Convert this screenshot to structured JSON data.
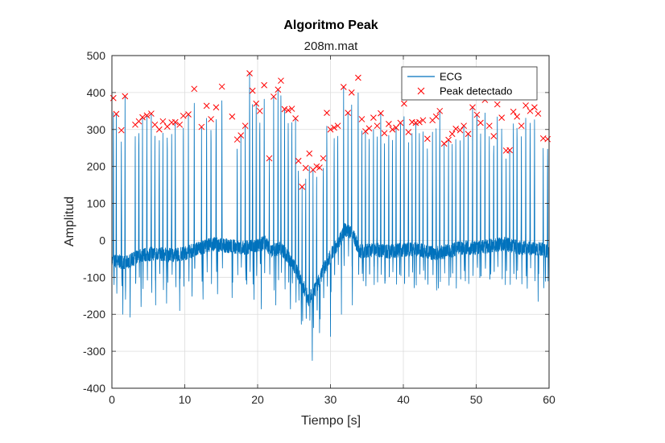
{
  "chart_data": {
    "type": "line",
    "title": "Algoritmo Peak",
    "subtitle": "208m.mat",
    "xlabel": "Tiempo [s]",
    "ylabel": "Amplitud",
    "xlim": [
      0,
      60
    ],
    "ylim": [
      -400,
      500
    ],
    "xticks": [
      0,
      10,
      20,
      30,
      40,
      50,
      60
    ],
    "yticks": [
      -400,
      -300,
      -200,
      -100,
      0,
      100,
      200,
      300,
      400,
      500
    ],
    "grid": true,
    "legend_position": "top-right",
    "series": [
      {
        "name": "ECG",
        "color": "#0072BD",
        "style": "line",
        "baseline": [
          [
            0,
            -55
          ],
          [
            2,
            -60
          ],
          [
            4,
            -40
          ],
          [
            6,
            -35
          ],
          [
            8,
            -40
          ],
          [
            10,
            -35
          ],
          [
            12,
            -20
          ],
          [
            14,
            -10
          ],
          [
            16,
            -15
          ],
          [
            18,
            -20
          ],
          [
            20,
            -15
          ],
          [
            21,
            -5
          ],
          [
            22,
            -30
          ],
          [
            23,
            -20
          ],
          [
            24,
            -40
          ],
          [
            25,
            -70
          ],
          [
            26,
            -110
          ],
          [
            27,
            -160
          ],
          [
            28,
            -130
          ],
          [
            29,
            -80
          ],
          [
            30,
            -40
          ],
          [
            31,
            -10
          ],
          [
            32,
            30
          ],
          [
            33,
            20
          ],
          [
            34,
            -30
          ],
          [
            36,
            -25
          ],
          [
            38,
            -30
          ],
          [
            40,
            -25
          ],
          [
            42,
            -25
          ],
          [
            44,
            -35
          ],
          [
            46,
            -30
          ],
          [
            48,
            -20
          ],
          [
            50,
            -20
          ],
          [
            52,
            -15
          ],
          [
            54,
            -10
          ],
          [
            56,
            -20
          ],
          [
            58,
            -20
          ],
          [
            60,
            -30
          ]
        ],
        "troughs": [
          [
            0.3,
            -120
          ],
          [
            1.5,
            -200
          ],
          [
            2.5,
            -225
          ],
          [
            4,
            -195
          ],
          [
            6,
            -175
          ],
          [
            7.5,
            -170
          ],
          [
            9.3,
            -190
          ],
          [
            11,
            -165
          ],
          [
            12.5,
            -175
          ],
          [
            14.5,
            -160
          ],
          [
            16.5,
            -155
          ],
          [
            18.5,
            -130
          ],
          [
            19.5,
            -160
          ],
          [
            20.5,
            -205
          ],
          [
            22.5,
            -175
          ],
          [
            24.5,
            -200
          ],
          [
            26,
            -240
          ],
          [
            27.5,
            -345
          ],
          [
            28.5,
            -250
          ],
          [
            30,
            -260
          ],
          [
            31.5,
            -200
          ],
          [
            33,
            -175
          ],
          [
            34.5,
            -110
          ],
          [
            36,
            -120
          ],
          [
            37.5,
            -110
          ],
          [
            39.5,
            -100
          ],
          [
            41.5,
            -140
          ],
          [
            43,
            -115
          ],
          [
            44.8,
            -140
          ],
          [
            46.5,
            -100
          ],
          [
            48.5,
            -120
          ],
          [
            50.5,
            -110
          ],
          [
            52,
            -100
          ],
          [
            54,
            -120
          ],
          [
            55.5,
            -105
          ],
          [
            57,
            -130
          ],
          [
            58.5,
            -165
          ],
          [
            59.5,
            -120
          ]
        ]
      },
      {
        "name": "Peak detectado",
        "color": "#FF0000",
        "style": "marker-x",
        "x": [
          0.2,
          0.6,
          1.3,
          1.8,
          3.2,
          3.7,
          4.2,
          4.8,
          5.4,
          5.9,
          6.5,
          7.0,
          7.6,
          8.2,
          8.7,
          9.3,
          9.8,
          10.5,
          11.3,
          12.3,
          13.0,
          13.6,
          14.3,
          15.1,
          16.5,
          17.2,
          17.7,
          18.3,
          18.9,
          19.3,
          19.8,
          20.3,
          20.9,
          21.6,
          22.2,
          22.8,
          23.2,
          23.7,
          24.2,
          24.7,
          25.2,
          25.6,
          26.1,
          26.6,
          27.1,
          27.6,
          28.1,
          28.5,
          29.0,
          29.5,
          30.0,
          30.5,
          31.0,
          31.8,
          32.4,
          32.9,
          33.8,
          34.3,
          34.8,
          35.3,
          35.9,
          36.4,
          36.9,
          37.4,
          38.0,
          38.5,
          39.0,
          39.6,
          40.1,
          40.7,
          41.2,
          41.7,
          42.2,
          42.7,
          43.3,
          44.0,
          44.5,
          45.0,
          45.6,
          46.2,
          46.7,
          47.2,
          47.8,
          48.3,
          48.9,
          49.5,
          50.1,
          50.6,
          51.2,
          51.8,
          52.4,
          52.9,
          53.5,
          54.1,
          54.6,
          55.1,
          55.6,
          56.2,
          56.8,
          57.4,
          58.0,
          58.5,
          59.2,
          59.8
        ],
        "y": [
          385,
          342,
          298,
          390,
          313,
          322,
          333,
          338,
          343,
          313,
          300,
          322,
          308,
          319,
          320,
          313,
          337,
          341,
          410,
          307,
          364,
          328,
          360,
          416,
          335,
          273,
          284,
          310,
          452,
          405,
          370,
          350,
          420,
          222,
          389,
          408,
          432,
          355,
          352,
          356,
          330,
          215,
          145,
          196,
          235,
          191,
          200,
          197,
          222,
          345,
          300,
          305,
          310,
          415,
          345,
          400,
          440,
          328,
          295,
          303,
          332,
          310,
          344,
          290,
          315,
          300,
          305,
          318,
          370,
          293,
          320,
          318,
          320,
          325,
          275,
          325,
          335,
          350,
          262,
          272,
          288,
          302,
          298,
          310,
          288,
          360,
          340,
          318,
          380,
          310,
          282,
          368,
          332,
          243,
          244,
          348,
          335,
          310,
          365,
          350,
          360,
          343,
          276,
          274
        ]
      }
    ]
  }
}
